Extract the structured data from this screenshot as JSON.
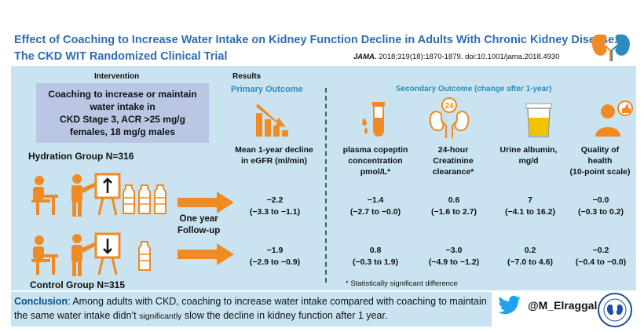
{
  "header": {
    "title_line1": "Effect of Coaching to Increase Water Intake on Kidney Function Decline in Adults With Chronic Kidney Disease.",
    "title_line2": "The CKD WIT Randomized Clinical Trial",
    "citation_journal": "JAMA.",
    "citation_rest": " 2018;319(18):1870-1879. doi:10.1001/jama.2018.4930"
  },
  "intervention": {
    "heading": "Intervention",
    "box_lines": [
      "Coaching to increase or maintain",
      "water intake in",
      "CKD Stage 3, ACR >25 mg/g",
      "females, 18 mg/g males"
    ],
    "hydration_group": "Hydration Group N=316",
    "control_group": "Control Group N=315",
    "followup_line1": "One year",
    "followup_line2": "Follow-up"
  },
  "results": {
    "heading": "Results",
    "primary_heading": "Primary Outcome",
    "secondary_heading": "Secondary Outcome  (change after 1-year)",
    "columns": [
      {
        "label_lines": [
          "Mean 1-year decline",
          "in eGFR (ml/min)"
        ],
        "icon": "declining-bar-chart-icon",
        "hydration": [
          "−2.2",
          "(−3.3 to −1.1)"
        ],
        "control": [
          "−1.9",
          "(−2.9 to −0.9)"
        ]
      },
      {
        "label_lines": [
          "plasma copeptin",
          "concentration",
          "pmol/L*"
        ],
        "icon": "blood-test-tube-icon",
        "hydration": [
          "−1.4",
          "(−2.7 to −0.0)"
        ],
        "control": [
          "0.8",
          "(−0.3 to 1.9)"
        ]
      },
      {
        "label_lines": [
          "24-hour",
          "Creatinine",
          "clearance*"
        ],
        "icon": "kidney-24h-icon",
        "hydration": [
          "0.6",
          "(−1.6 to 2.7)"
        ],
        "control": [
          "−3.0",
          "(−4.9 to −1.2)"
        ]
      },
      {
        "label_lines": [
          "Urine albumin,",
          "mg/d"
        ],
        "icon": "urine-cup-icon",
        "hydration": [
          "7",
          "(−4.1 to 16.2)"
        ],
        "control": [
          "0.2",
          "(−7.0 to 4.6)"
        ]
      },
      {
        "label_lines": [
          "Quality of",
          "health",
          "(10-point scale)"
        ],
        "icon": "person-like-icon",
        "hydration": [
          "−0.0",
          "(−0.3 to 0.2)"
        ],
        "control": [
          "−0.2",
          "(−0.4 to −0.0)"
        ]
      }
    ],
    "footnote": "* Statistically significant difference",
    "kidney_24_label": "24"
  },
  "conclusion": {
    "label": "Conclusion",
    "text_part1": ": Among adults with CKD, coaching to increase water intake compared with coaching to maintain the same water intake didn’t ",
    "text_small": "significantly",
    "text_part2": " slow the decline in kidney function after 1 year."
  },
  "social": {
    "handle": "@M_Elraggal"
  },
  "colors": {
    "title_blue": "#2e6db4",
    "panel_blue": "#c9e4f0",
    "box_purple": "#b9c7e5",
    "orange": "#f08a24"
  }
}
